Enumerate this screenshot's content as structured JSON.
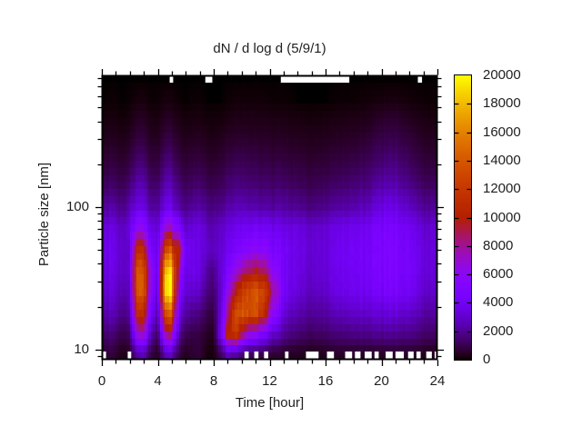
{
  "title": "dN / d log d (5/9/1)",
  "colors": {
    "background": "#ffffff",
    "axis": "#000000",
    "text": "#1f1f1f",
    "no_data": "#ffffff"
  },
  "chart_data": {
    "type": "heatmap",
    "title": "dN / d log d (5/9/1)",
    "xlabel": "Time [hour]",
    "ylabel": "Particle size [nm]",
    "x_range": [
      0,
      24
    ],
    "x_ticks": {
      "values": [
        0,
        4,
        8,
        12,
        16,
        20,
        24
      ],
      "labels": [
        "0",
        "4",
        "8",
        "12",
        "16",
        "20",
        "24"
      ],
      "minor_step": 1
    },
    "y_scale": "log",
    "y_range": [
      8.5,
      840
    ],
    "y_ticks": {
      "values": [
        10,
        100
      ],
      "labels": [
        "10",
        "100"
      ]
    },
    "y_minor_ticks": [
      9,
      20,
      30,
      40,
      50,
      60,
      70,
      80,
      90,
      200,
      300,
      400,
      500,
      600,
      700,
      800
    ],
    "colorbar": {
      "min": 0,
      "max": 20000,
      "tick_values": [
        0,
        2000,
        4000,
        6000,
        8000,
        10000,
        12000,
        14000,
        16000,
        18000,
        20000
      ],
      "tick_labels": [
        "0",
        "2000",
        "4000",
        "6000",
        "8000",
        "10000",
        "12000",
        "14000",
        "16000",
        "18000",
        "20000"
      ],
      "palette": "gnuplot-pm3d-7-5-15-black-violet-red-orange-yellow"
    },
    "grid": {
      "t": [
        0,
        0.5,
        1,
        1.5,
        2,
        2.5,
        3,
        3.5,
        4,
        4.5,
        5,
        5.5,
        6,
        6.5,
        7,
        7.5,
        8,
        8.5,
        9,
        9.5,
        10,
        10.5,
        11,
        11.5,
        12,
        13,
        14,
        15,
        16,
        17,
        18,
        19,
        20,
        21,
        22,
        23,
        24
      ],
      "size_nm": [
        800,
        560,
        400,
        280,
        200,
        140,
        100,
        70,
        50,
        36,
        26,
        18,
        13,
        9.5
      ],
      "values": [
        [
          0,
          0,
          0,
          0,
          0,
          0,
          0,
          0,
          0,
          0,
          0,
          0,
          0,
          0,
          0,
          0,
          0,
          0,
          0,
          0,
          0,
          0,
          0,
          0,
          0,
          0,
          0,
          0,
          0,
          0,
          0,
          0,
          0,
          0,
          0,
          0,
          0
        ],
        [
          0,
          50,
          50,
          0,
          50,
          150,
          150,
          50,
          50,
          150,
          150,
          50,
          0,
          50,
          50,
          0,
          0,
          0,
          50,
          100,
          100,
          100,
          100,
          100,
          50,
          50,
          0,
          0,
          0,
          50,
          50,
          100,
          150,
          200,
          100,
          50,
          50
        ],
        [
          150,
          200,
          180,
          120,
          200,
          450,
          430,
          250,
          200,
          460,
          480,
          250,
          160,
          200,
          210,
          150,
          120,
          160,
          250,
          300,
          310,
          310,
          300,
          290,
          260,
          250,
          200,
          160,
          200,
          250,
          280,
          350,
          550,
          650,
          400,
          250,
          210
        ],
        [
          350,
          450,
          400,
          330,
          500,
          850,
          820,
          500,
          450,
          900,
          950,
          520,
          400,
          460,
          480,
          380,
          330,
          400,
          550,
          610,
          630,
          620,
          600,
          580,
          520,
          500,
          430,
          380,
          430,
          510,
          560,
          700,
          1000,
          1100,
          750,
          480,
          430
        ],
        [
          650,
          800,
          720,
          640,
          900,
          1500,
          1420,
          860,
          780,
          1520,
          1600,
          900,
          700,
          790,
          850,
          680,
          600,
          720,
          950,
          1050,
          1100,
          1060,
          1010,
          960,
          880,
          850,
          720,
          640,
          720,
          850,
          950,
          1150,
          1500,
          1700,
          1150,
          780,
          710
        ],
        [
          1100,
          1350,
          1200,
          1050,
          1550,
          2400,
          2260,
          1420,
          1300,
          2420,
          2500,
          1460,
          1150,
          1300,
          1400,
          1120,
          1000,
          1160,
          1460,
          1600,
          1650,
          1600,
          1520,
          1460,
          1350,
          1350,
          1150,
          1020,
          1150,
          1350,
          1500,
          1750,
          2300,
          2500,
          1750,
          1250,
          1150
        ],
        [
          1900,
          2300,
          2000,
          1750,
          2500,
          3500,
          3320,
          2200,
          2050,
          3520,
          3650,
          2260,
          1820,
          2050,
          2200,
          1800,
          1650,
          1860,
          2260,
          2450,
          2550,
          2500,
          2400,
          2300,
          2150,
          2150,
          1850,
          1650,
          1850,
          2150,
          2350,
          2650,
          3400,
          3600,
          2650,
          2000,
          1900
        ],
        [
          3000,
          3600,
          3100,
          2700,
          3600,
          6000,
          5600,
          3600,
          3100,
          6800,
          7200,
          5200,
          3100,
          3300,
          3500,
          2750,
          2500,
          2900,
          3400,
          3700,
          4000,
          4200,
          4300,
          4200,
          3900,
          3600,
          3300,
          3000,
          3200,
          3600,
          3800,
          4000,
          4500,
          4700,
          3900,
          3100,
          2900
        ],
        [
          3300,
          3900,
          3400,
          2900,
          3100,
          11000,
          10000,
          4800,
          3400,
          12500,
          13500,
          9500,
          4200,
          3700,
          3400,
          3000,
          2700,
          3100,
          3900,
          4400,
          5000,
          5600,
          6000,
          5800,
          4800,
          4200,
          3500,
          3100,
          3300,
          3900,
          4100,
          4300,
          4700,
          4900,
          4100,
          3300,
          3100
        ],
        [
          3100,
          3700,
          3200,
          2700,
          3200,
          13500,
          12500,
          6500,
          3300,
          17000,
          18500,
          7000,
          3800,
          3600,
          3400,
          2200,
          1800,
          3200,
          4600,
          6000,
          7500,
          9000,
          9500,
          9000,
          6500,
          4200,
          3400,
          3000,
          3200,
          3800,
          4000,
          4300,
          4600,
          4900,
          4200,
          3300,
          3000
        ],
        [
          2800,
          3300,
          2900,
          2400,
          2800,
          13500,
          13000,
          6000,
          2900,
          18000,
          19000,
          5200,
          3200,
          3000,
          2800,
          1700,
          1400,
          3000,
          6000,
          9000,
          12000,
          13500,
          14000,
          13500,
          9500,
          4200,
          3100,
          2700,
          2900,
          3600,
          3800,
          4000,
          4300,
          4600,
          3900,
          3000,
          2800
        ],
        [
          2100,
          2600,
          2300,
          1700,
          2200,
          10500,
          10500,
          4500,
          2100,
          13000,
          14000,
          3600,
          2200,
          1800,
          1600,
          1000,
          800,
          3200,
          8000,
          12500,
          13500,
          13800,
          13500,
          12000,
          7000,
          3200,
          2300,
          2000,
          2200,
          2600,
          2800,
          2900,
          3100,
          3300,
          2800,
          2200,
          2000
        ],
        [
          1200,
          1600,
          1300,
          900,
          1300,
          6500,
          7000,
          2600,
          1100,
          7500,
          8500,
          2000,
          1100,
          900,
          800,
          500,
          400,
          4000,
          10500,
          12000,
          9000,
          7000,
          6000,
          5000,
          3400,
          2000,
          1400,
          1200,
          1300,
          1600,
          1700,
          1800,
          1900,
          2000,
          1700,
          1400,
          1200
        ],
        [
          500,
          800,
          600,
          300,
          500,
          2200,
          2400,
          900,
          350,
          2400,
          2800,
          800,
          400,
          600,
          700,
          200,
          150,
          1200,
          2600,
          2200,
          1500,
          1200,
          1100,
          1000,
          700,
          500,
          400,
          300,
          400,
          500,
          500,
          500,
          500,
          600,
          500,
          400,
          300
        ]
      ]
    },
    "no_data_white": {
      "top_t_ranges": [
        [
          4.85,
          5.1
        ],
        [
          7.4,
          7.9
        ],
        [
          12.8,
          17.7
        ],
        [
          22.6,
          22.9
        ]
      ],
      "bottom_t_ranges": [
        [
          0,
          0.3
        ],
        [
          1.85,
          2.1
        ],
        [
          10.2,
          10.5
        ],
        [
          10.9,
          11.2
        ],
        [
          11.6,
          11.9
        ],
        [
          13.1,
          13.35
        ],
        [
          14.6,
          15.5
        ],
        [
          16.1,
          16.6
        ],
        [
          17.4,
          17.9
        ],
        [
          18.1,
          18.5
        ],
        [
          18.8,
          19.3
        ],
        [
          19.5,
          19.8
        ],
        [
          20.3,
          20.8
        ],
        [
          21.0,
          21.6
        ],
        [
          21.9,
          22.3
        ],
        [
          22.5,
          22.8
        ],
        [
          23.2,
          23.6
        ],
        [
          23.8,
          24
        ]
      ]
    }
  }
}
